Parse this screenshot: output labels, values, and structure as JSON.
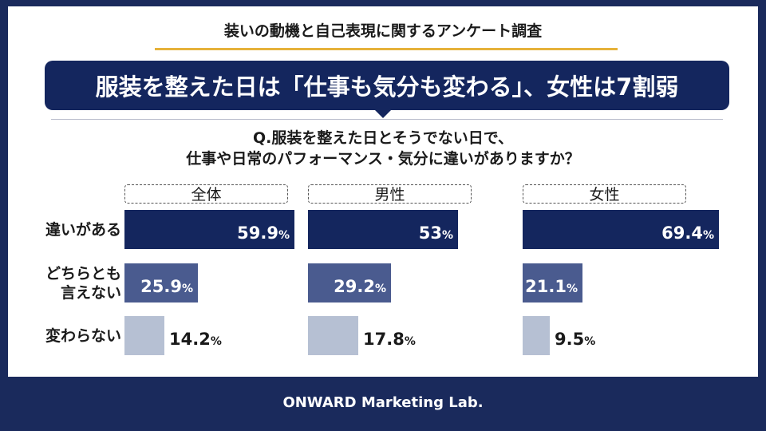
{
  "survey_title": "装いの動機と自己表現に関するアンケート調査",
  "headline": "服装を整えた日は「仕事も気分も変わる」、女性は7割弱",
  "question_line1": "Q.服装を整えた日とそうでない日で、",
  "question_line2": "仕事や日常のパフォーマンス・気分に違いがありますか？",
  "footer": "ONWARD Marketing Lab.",
  "chart_data": {
    "type": "bar",
    "orientation": "horizontal",
    "unit": "%",
    "categories": [
      [
        "違いがある"
      ],
      [
        "どちらとも",
        "言えない"
      ],
      [
        "変わらない"
      ]
    ],
    "groups": [
      {
        "name": "全体",
        "values": [
          59.9,
          25.9,
          14.2
        ],
        "labels": [
          "59.9",
          "25.9",
          "14.2"
        ]
      },
      {
        "name": "男性",
        "values": [
          53,
          29.2,
          17.8
        ],
        "labels": [
          "53",
          "29.2",
          "17.8"
        ]
      },
      {
        "name": "女性",
        "values": [
          69.4,
          21.1,
          9.5
        ],
        "labels": [
          "69.4",
          "21.1",
          "9.5"
        ]
      }
    ],
    "colors": [
      "#14265e",
      "#4a5b8f",
      "#b6c0d3"
    ],
    "xlim": [
      0,
      100
    ]
  }
}
